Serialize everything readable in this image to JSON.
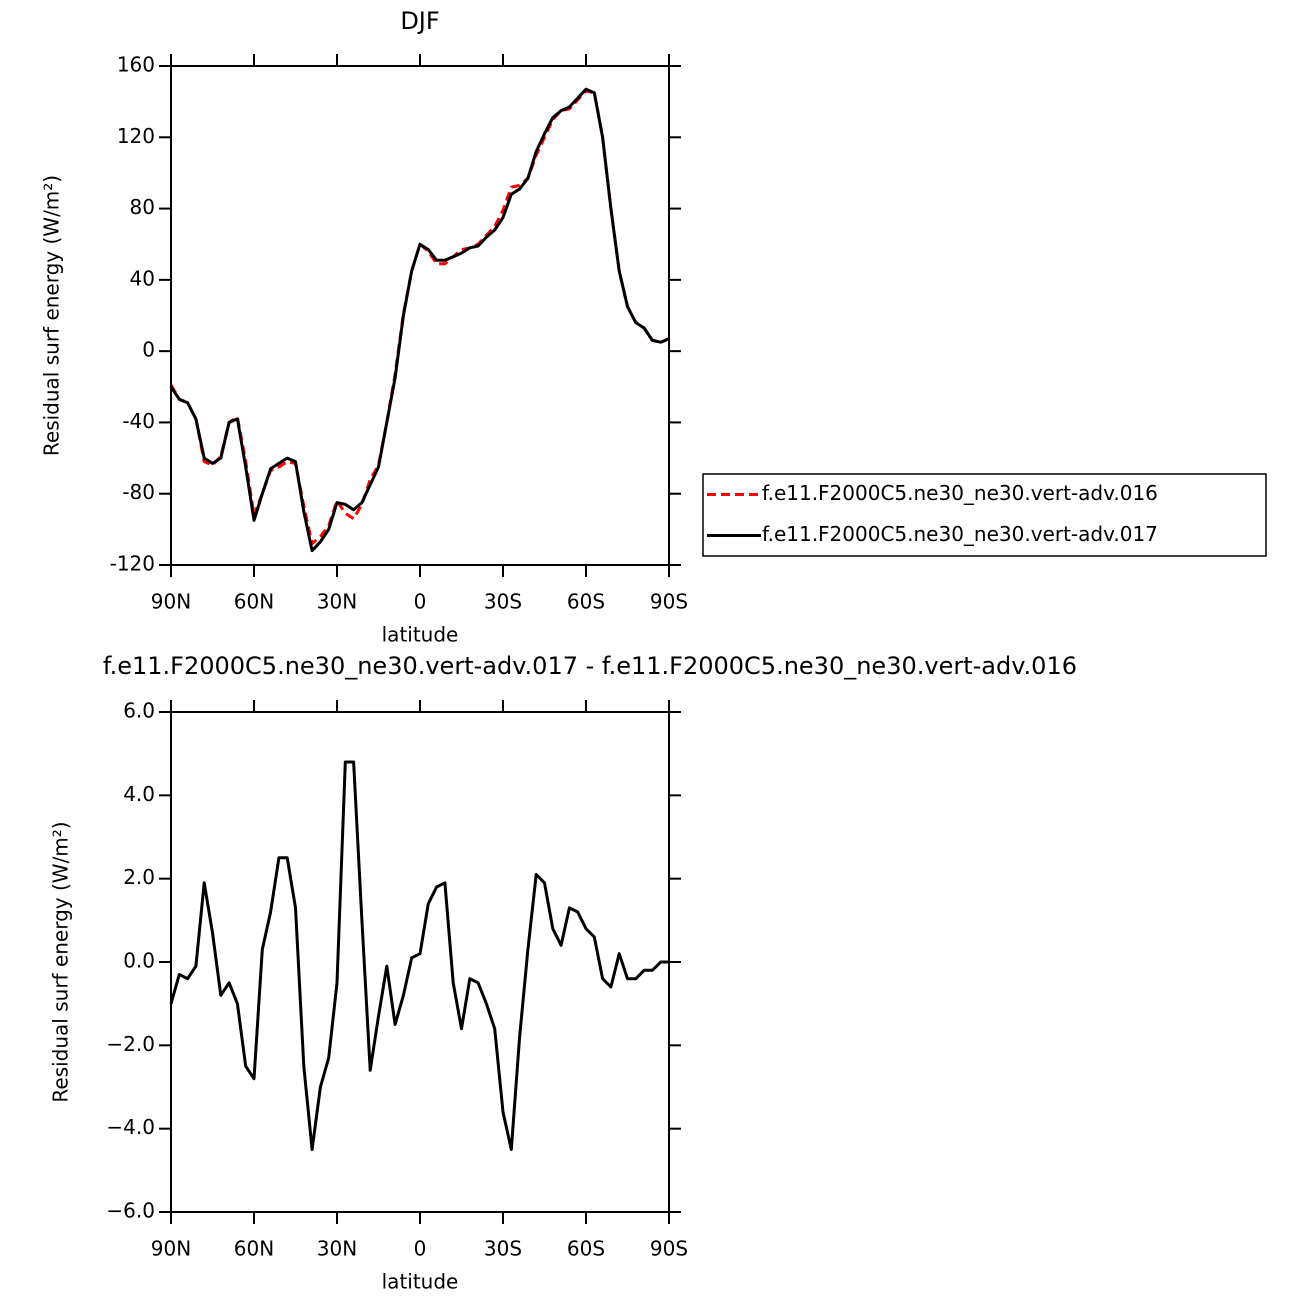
{
  "chart_data": [
    {
      "type": "line",
      "title": "DJF",
      "x_label": "latitude",
      "y_label": "Residual surf energy (W/m²)",
      "x": [
        90,
        87,
        84,
        81,
        78,
        75,
        72,
        69,
        66,
        63,
        60,
        57,
        54,
        51,
        48,
        45,
        42,
        39,
        36,
        33,
        30,
        27,
        24,
        21,
        18,
        15,
        12,
        9,
        6,
        3,
        0,
        -3,
        -6,
        -9,
        -12,
        -15,
        -18,
        -21,
        -24,
        -27,
        -30,
        -33,
        -36,
        -39,
        -42,
        -45,
        -48,
        -51,
        -54,
        -57,
        -60,
        -63,
        -66,
        -69,
        -72,
        -75,
        -78,
        -81,
        -84,
        -87,
        -90
      ],
      "series": [
        {
          "name": "f.e11.F2000C5.ne30_ne30.vert-adv.016",
          "color": "#ff0000",
          "line_style": "dashed",
          "values": [
            -19,
            -27,
            -29,
            -38,
            -62,
            -64,
            -59,
            -40,
            -37,
            -62,
            -92,
            -80,
            -67,
            -65,
            -62,
            -63,
            -87,
            -108,
            -104,
            -98,
            -84,
            -91,
            -94,
            -86,
            -72,
            -64,
            -40,
            -13,
            21,
            45,
            60,
            56,
            49,
            49,
            53,
            57,
            58,
            60,
            65,
            70,
            79,
            92,
            93,
            97,
            110,
            120,
            130,
            135,
            136,
            141,
            146,
            145,
            120,
            80,
            45,
            25,
            16,
            13,
            6,
            5,
            7
          ]
        },
        {
          "name": "f.e11.F2000C5.ne30_ne30.vert-adv.017",
          "color": "#000000",
          "line_style": "solid",
          "values": [
            -20,
            -27,
            -29,
            -38,
            -60,
            -63,
            -60,
            -40,
            -38,
            -65,
            -95,
            -80,
            -66,
            -63,
            -60,
            -62,
            -90,
            -112,
            -107,
            -100,
            -85,
            -86,
            -89,
            -85,
            -75,
            -65,
            -40,
            -15,
            20,
            45,
            60,
            57,
            51,
            51,
            53,
            55,
            58,
            59,
            64,
            68,
            75,
            88,
            91,
            97,
            112,
            122,
            131,
            135,
            137,
            142,
            147,
            145,
            120,
            80,
            45,
            25,
            16,
            13,
            6,
            5,
            7
          ]
        }
      ],
      "xlim": [
        90,
        -90
      ],
      "xticks": [
        {
          "value": 90,
          "label": "90N"
        },
        {
          "value": 60,
          "label": "60N"
        },
        {
          "value": 30,
          "label": "30N"
        },
        0,
        {
          "value": -30,
          "label": "30S"
        },
        {
          "value": -60,
          "label": "60S"
        },
        {
          "value": -90,
          "label": "90S"
        }
      ],
      "ylim": [
        -120,
        160
      ],
      "yticks": [
        -120,
        -80,
        -40,
        0,
        40,
        80,
        120,
        160
      ],
      "legend": "right"
    },
    {
      "type": "line",
      "title": "f.e11.F2000C5.ne30_ne30.vert-adv.017 - f.e11.F2000C5.ne30_ne30.vert-adv.016",
      "x_label": "latitude",
      "y_label": "Residual surf energy (W/m²)",
      "x": [
        90,
        87,
        84,
        81,
        78,
        75,
        72,
        69,
        66,
        63,
        60,
        57,
        54,
        51,
        48,
        45,
        42,
        39,
        36,
        33,
        30,
        27,
        24,
        21,
        18,
        15,
        12,
        9,
        6,
        3,
        0,
        -3,
        -6,
        -9,
        -12,
        -15,
        -18,
        -21,
        -24,
        -27,
        -30,
        -33,
        -36,
        -39,
        -42,
        -45,
        -48,
        -51,
        -54,
        -57,
        -60,
        -63,
        -66,
        -69,
        -72,
        -75,
        -78,
        -81,
        -84,
        -87,
        -90
      ],
      "series": [
        {
          "color": "#000000",
          "line_style": "solid",
          "values": [
            -1.0,
            -0.3,
            -0.4,
            -0.1,
            1.9,
            0.7,
            -0.8,
            -0.5,
            -1.0,
            -2.5,
            -2.8,
            0.3,
            1.2,
            2.5,
            2.5,
            1.3,
            -2.5,
            -4.5,
            -3.0,
            -2.3,
            -0.5,
            4.8,
            4.8,
            1.0,
            -2.6,
            -1.3,
            -0.1,
            -1.5,
            -0.8,
            0.1,
            0.2,
            1.4,
            1.8,
            1.9,
            -0.5,
            -1.6,
            -0.4,
            -0.5,
            -1.0,
            -1.6,
            -3.6,
            -4.5,
            -1.8,
            0.3,
            2.1,
            1.9,
            0.8,
            0.4,
            1.3,
            1.2,
            0.8,
            0.6,
            -0.4,
            -0.6,
            0.2,
            -0.4,
            -0.4,
            -0.2,
            -0.2,
            0.0,
            0.0
          ]
        }
      ],
      "xlim": [
        90,
        -90
      ],
      "xticks": [
        {
          "value": 90,
          "label": "90N"
        },
        {
          "value": 60,
          "label": "60N"
        },
        {
          "value": 30,
          "label": "30N"
        },
        0,
        {
          "value": -30,
          "label": "30S"
        },
        {
          "value": -60,
          "label": "60S"
        },
        {
          "value": -90,
          "label": "90S"
        }
      ],
      "ylim": [
        -6,
        6
      ],
      "yticks": [
        {
          "value": -6,
          "label": "−6.0"
        },
        {
          "value": -4,
          "label": "−4.0"
        },
        {
          "value": -2,
          "label": "−2.0"
        },
        {
          "value": 0,
          "label": "0.0"
        },
        {
          "value": 2,
          "label": "2.0"
        },
        {
          "value": 4,
          "label": "4.0"
        },
        {
          "value": 6,
          "label": "6.0"
        }
      ]
    }
  ]
}
